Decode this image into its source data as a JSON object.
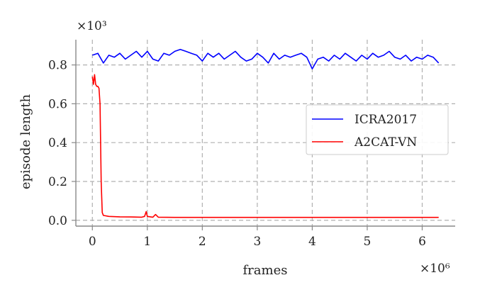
{
  "chart_data": {
    "type": "line",
    "xlabel": "frames",
    "ylabel": "episode length",
    "x_multiplier_label": "×10⁶",
    "y_multiplier_label": "×10³",
    "xlim": [
      -0.3,
      6.6
    ],
    "ylim": [
      -0.03,
      0.93
    ],
    "xticks": [
      0,
      1,
      2,
      3,
      4,
      5,
      6
    ],
    "xtick_labels": [
      "0",
      "1",
      "2",
      "3",
      "4",
      "5",
      "6"
    ],
    "yticks": [
      0.0,
      0.2,
      0.4,
      0.6,
      0.8
    ],
    "ytick_labels": [
      "0.0",
      "0.2",
      "0.4",
      "0.6",
      "0.8"
    ],
    "grid": true,
    "legend_position": "center-right",
    "series": [
      {
        "name": "ICRA2017",
        "color": "#0000ff",
        "x": [
          0.0,
          0.1,
          0.2,
          0.3,
          0.4,
          0.5,
          0.6,
          0.7,
          0.8,
          0.9,
          1.0,
          1.1,
          1.2,
          1.3,
          1.4,
          1.5,
          1.6,
          1.7,
          1.8,
          1.9,
          2.0,
          2.1,
          2.2,
          2.3,
          2.4,
          2.5,
          2.6,
          2.7,
          2.8,
          2.9,
          3.0,
          3.1,
          3.2,
          3.3,
          3.4,
          3.5,
          3.6,
          3.7,
          3.8,
          3.9,
          4.0,
          4.1,
          4.2,
          4.3,
          4.4,
          4.5,
          4.6,
          4.7,
          4.8,
          4.9,
          5.0,
          5.1,
          5.2,
          5.3,
          5.4,
          5.5,
          5.6,
          5.7,
          5.8,
          5.9,
          6.0,
          6.1,
          6.2,
          6.3
        ],
        "y": [
          0.85,
          0.86,
          0.81,
          0.85,
          0.84,
          0.86,
          0.83,
          0.85,
          0.87,
          0.84,
          0.87,
          0.83,
          0.82,
          0.86,
          0.85,
          0.87,
          0.88,
          0.87,
          0.86,
          0.85,
          0.82,
          0.86,
          0.84,
          0.86,
          0.83,
          0.85,
          0.87,
          0.84,
          0.82,
          0.83,
          0.86,
          0.84,
          0.81,
          0.86,
          0.83,
          0.85,
          0.84,
          0.85,
          0.86,
          0.84,
          0.78,
          0.83,
          0.84,
          0.82,
          0.85,
          0.83,
          0.86,
          0.84,
          0.82,
          0.85,
          0.83,
          0.86,
          0.84,
          0.85,
          0.87,
          0.84,
          0.83,
          0.85,
          0.82,
          0.84,
          0.83,
          0.85,
          0.84,
          0.81
        ]
      },
      {
        "name": "A2CAT-VN",
        "color": "#ff0000",
        "x": [
          0.0,
          0.02,
          0.04,
          0.06,
          0.08,
          0.1,
          0.12,
          0.14,
          0.16,
          0.18,
          0.2,
          0.3,
          0.5,
          0.7,
          0.9,
          0.95,
          0.98,
          1.0,
          1.1,
          1.15,
          1.2,
          1.5,
          2.0,
          2.5,
          3.0,
          3.5,
          4.0,
          4.5,
          5.0,
          5.5,
          6.0,
          6.3
        ],
        "y": [
          0.74,
          0.7,
          0.75,
          0.7,
          0.69,
          0.69,
          0.68,
          0.6,
          0.2,
          0.04,
          0.025,
          0.02,
          0.018,
          0.017,
          0.016,
          0.02,
          0.045,
          0.02,
          0.016,
          0.03,
          0.016,
          0.015,
          0.015,
          0.015,
          0.015,
          0.015,
          0.015,
          0.015,
          0.015,
          0.015,
          0.015,
          0.015
        ]
      }
    ]
  }
}
